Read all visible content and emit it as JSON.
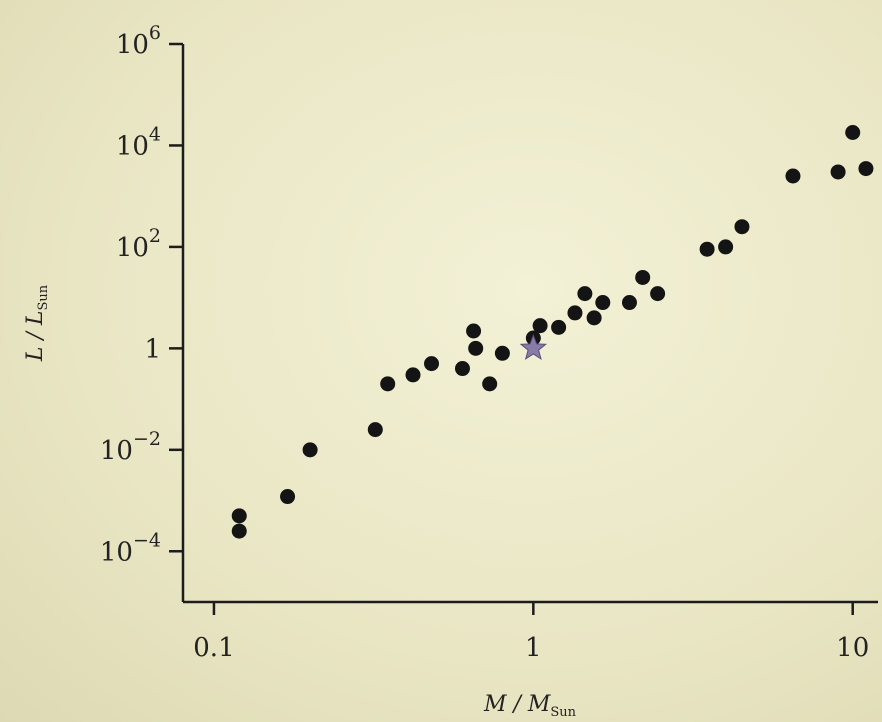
{
  "chart_data": {
    "type": "scatter",
    "xscale": "log",
    "yscale": "log",
    "xlim": [
      0.08,
      12
    ],
    "ylim": [
      1e-05,
      1000000
    ],
    "xticks": [
      {
        "value": 0.1,
        "label": "0.1"
      },
      {
        "value": 1,
        "label": "1"
      },
      {
        "value": 10,
        "label": "10"
      }
    ],
    "yticks": [
      {
        "value": 1000000,
        "base": "10",
        "exp": "6"
      },
      {
        "value": 10000,
        "base": "10",
        "exp": "4"
      },
      {
        "value": 100,
        "base": "10",
        "exp": "2"
      },
      {
        "value": 1,
        "base": "1",
        "exp": ""
      },
      {
        "value": 0.01,
        "base": "10",
        "exp": "−2"
      },
      {
        "value": 0.0001,
        "base": "10",
        "exp": "−4"
      }
    ],
    "xlabel": {
      "main": "M / M",
      "sub": "Sun"
    },
    "ylabel": {
      "main": "L / L",
      "sub": "Sun"
    },
    "grid": false,
    "series": [
      {
        "marker": "dot",
        "color": "#141414",
        "points": [
          [
            0.12,
            0.0005
          ],
          [
            0.12,
            0.00025
          ],
          [
            0.17,
            0.0012
          ],
          [
            0.2,
            0.01
          ],
          [
            0.32,
            0.025
          ],
          [
            0.35,
            0.2
          ],
          [
            0.42,
            0.3
          ],
          [
            0.48,
            0.5
          ],
          [
            0.6,
            0.4
          ],
          [
            0.66,
            1.0
          ],
          [
            0.65,
            2.2
          ],
          [
            0.73,
            0.2
          ],
          [
            0.8,
            0.8
          ],
          [
            1.0,
            1.6
          ],
          [
            1.05,
            2.8
          ],
          [
            1.2,
            2.6
          ],
          [
            1.35,
            5.0
          ],
          [
            1.45,
            12
          ],
          [
            1.55,
            4.0
          ],
          [
            1.65,
            8.0
          ],
          [
            2.0,
            8.0
          ],
          [
            2.2,
            25
          ],
          [
            2.45,
            12
          ],
          [
            3.5,
            90
          ],
          [
            4.0,
            100
          ],
          [
            4.5,
            250
          ],
          [
            6.5,
            2500
          ],
          [
            9.0,
            3000
          ],
          [
            10.0,
            18000
          ],
          [
            11.0,
            3500
          ]
        ]
      },
      {
        "name": "Sun",
        "marker": "star",
        "color": "#8a7aa8",
        "points": [
          [
            1.0,
            1.0
          ]
        ]
      }
    ]
  }
}
